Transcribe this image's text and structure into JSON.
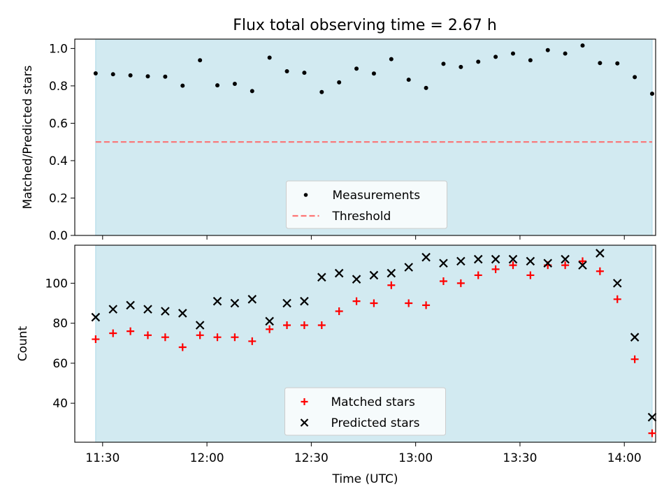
{
  "title": "Flux total observing time = 2.67 h",
  "chart_data": [
    {
      "type": "scatter",
      "ylabel": "Matched/Predicted stars",
      "xlabel": "",
      "ylim": [
        0,
        1.05
      ],
      "yticks": [
        0.0,
        0.2,
        0.4,
        0.6,
        0.8,
        1.0
      ],
      "ytick_labels": [
        "0.0",
        "0.2",
        "0.4",
        "0.6",
        "0.8",
        "1.0"
      ],
      "xlim": [
        "11:22",
        "14:09"
      ],
      "xticks": [
        "11:30",
        "12:00",
        "12:30",
        "13:00",
        "13:30",
        "14:00"
      ],
      "show_xtick_labels": false,
      "shaded_span": [
        "11:28",
        "14:08"
      ],
      "shade_color": "#add8e6",
      "legend_position": "lower center",
      "x": [
        "11:28",
        "11:33",
        "11:38",
        "11:43",
        "11:48",
        "11:53",
        "11:58",
        "12:03",
        "12:08",
        "12:13",
        "12:18",
        "12:23",
        "12:28",
        "12:33",
        "12:38",
        "12:43",
        "12:48",
        "12:53",
        "12:58",
        "13:03",
        "13:08",
        "13:13",
        "13:18",
        "13:23",
        "13:28",
        "13:33",
        "13:38",
        "13:43",
        "13:48",
        "13:53",
        "13:58",
        "14:03",
        "14:08"
      ],
      "series": [
        {
          "name": "Measurements",
          "marker": "dot",
          "color": "#000000",
          "values": [
            0.867,
            0.862,
            0.856,
            0.851,
            0.849,
            0.801,
            0.937,
            0.803,
            0.811,
            0.772,
            0.951,
            0.878,
            0.87,
            0.767,
            0.819,
            0.892,
            0.866,
            0.943,
            0.833,
            0.789,
            0.918,
            0.901,
            0.929,
            0.955,
            0.973,
            0.937,
            0.991,
            0.973,
            1.016,
            0.922,
            0.92,
            0.847,
            0.758
          ]
        },
        {
          "name": "Threshold",
          "marker": "dashed-line",
          "color": "#ff6666",
          "values": [
            0.5,
            0.5,
            0.5,
            0.5,
            0.5,
            0.5,
            0.5,
            0.5,
            0.5,
            0.5,
            0.5,
            0.5,
            0.5,
            0.5,
            0.5,
            0.5,
            0.5,
            0.5,
            0.5,
            0.5,
            0.5,
            0.5,
            0.5,
            0.5,
            0.5,
            0.5,
            0.5,
            0.5,
            0.5,
            0.5,
            0.5,
            0.5,
            0.5
          ]
        }
      ]
    },
    {
      "type": "scatter",
      "ylabel": "Count",
      "xlabel": "Time (UTC)",
      "ylim": [
        20.5,
        119
      ],
      "yticks": [
        40,
        60,
        80,
        100
      ],
      "ytick_labels": [
        "40",
        "60",
        "80",
        "100"
      ],
      "xlim": [
        "11:22",
        "14:09"
      ],
      "xticks": [
        "11:30",
        "12:00",
        "12:30",
        "13:00",
        "13:30",
        "14:00"
      ],
      "show_xtick_labels": true,
      "shaded_span": [
        "11:28",
        "14:08"
      ],
      "shade_color": "#add8e6",
      "legend_position": "lower center",
      "x": [
        "11:28",
        "11:33",
        "11:38",
        "11:43",
        "11:48",
        "11:53",
        "11:58",
        "12:03",
        "12:08",
        "12:13",
        "12:18",
        "12:23",
        "12:28",
        "12:33",
        "12:38",
        "12:43",
        "12:48",
        "12:53",
        "12:58",
        "13:03",
        "13:08",
        "13:13",
        "13:18",
        "13:23",
        "13:28",
        "13:33",
        "13:38",
        "13:43",
        "13:48",
        "13:53",
        "13:58",
        "14:03",
        "14:08"
      ],
      "series": [
        {
          "name": "Matched stars",
          "marker": "plus",
          "color": "#ff0000",
          "values": [
            72,
            75,
            76,
            74,
            73,
            68,
            74,
            73,
            73,
            71,
            77,
            79,
            79,
            79,
            86,
            91,
            90,
            99,
            90,
            89,
            101,
            100,
            104,
            107,
            109,
            104,
            109,
            109,
            111,
            106,
            92,
            62,
            25
          ]
        },
        {
          "name": "Predicted stars",
          "marker": "x",
          "color": "#000000",
          "values": [
            83,
            87,
            89,
            87,
            86,
            85,
            79,
            91,
            90,
            92,
            81,
            90,
            91,
            103,
            105,
            102,
            104,
            105,
            108,
            113,
            110,
            111,
            112,
            112,
            112,
            111,
            110,
            112,
            109,
            115,
            100,
            73,
            33
          ]
        }
      ]
    }
  ]
}
